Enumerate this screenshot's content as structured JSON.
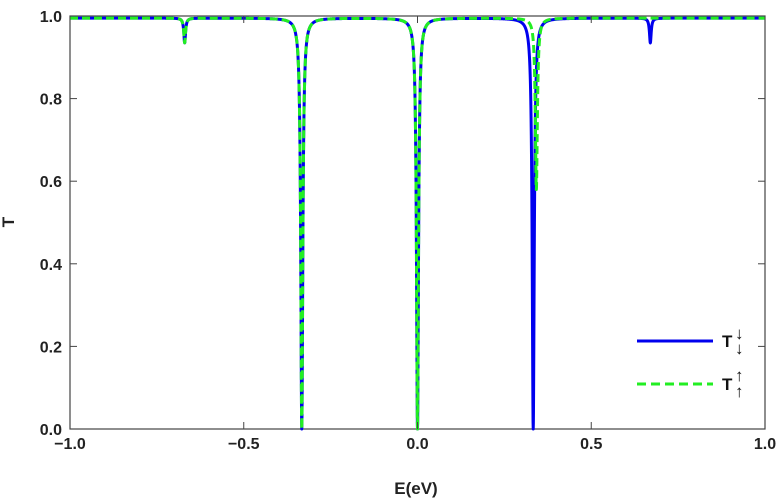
{
  "chart_data": {
    "type": "line",
    "xlabel": "E(eV)",
    "ylabel": "T",
    "xlim": [
      -1.0,
      1.0
    ],
    "ylim": [
      0.0,
      1.0
    ],
    "x_ticks": [
      "−1.0",
      "−0.5",
      "0.0",
      "0.5",
      "1.0"
    ],
    "x_tick_values": [
      -1.0,
      -0.5,
      0.0,
      0.5,
      1.0
    ],
    "y_ticks": [
      "0.0",
      "0.2",
      "0.4",
      "0.6",
      "0.8",
      "1.0"
    ],
    "y_tick_values": [
      0.0,
      0.2,
      0.4,
      0.6,
      0.8,
      1.0
    ],
    "baseline": 0.995,
    "series": [
      {
        "name": "T↓↓",
        "color": "#0000ee",
        "style": "solid",
        "dips": [
          {
            "x": -0.67,
            "min": 0.935,
            "width": 0.003
          },
          {
            "x": -0.333,
            "min": 0.0,
            "width": 0.0035
          },
          {
            "x": 0.0,
            "min": 0.0,
            "width": 0.0035
          },
          {
            "x": 0.333,
            "min": 0.0,
            "width": 0.0035
          },
          {
            "x": 0.67,
            "min": 0.935,
            "width": 0.003
          }
        ]
      },
      {
        "name": "T↑↑",
        "color": "#22ee22",
        "style": "dashed",
        "dips": [
          {
            "x": -0.67,
            "min": 0.935,
            "width": 0.003
          },
          {
            "x": -0.333,
            "min": 0.0,
            "width": 0.0035
          },
          {
            "x": 0.0,
            "min": 0.0,
            "width": 0.0035
          },
          {
            "x": 0.342,
            "min": 0.58,
            "width": 0.0035
          }
        ]
      }
    ],
    "legend": {
      "position": "bottom-right",
      "entries": [
        {
          "main": "T",
          "sub": "↓",
          "sup": "↓"
        },
        {
          "main": "T",
          "sub": "↑",
          "sup": "↑"
        }
      ]
    }
  }
}
